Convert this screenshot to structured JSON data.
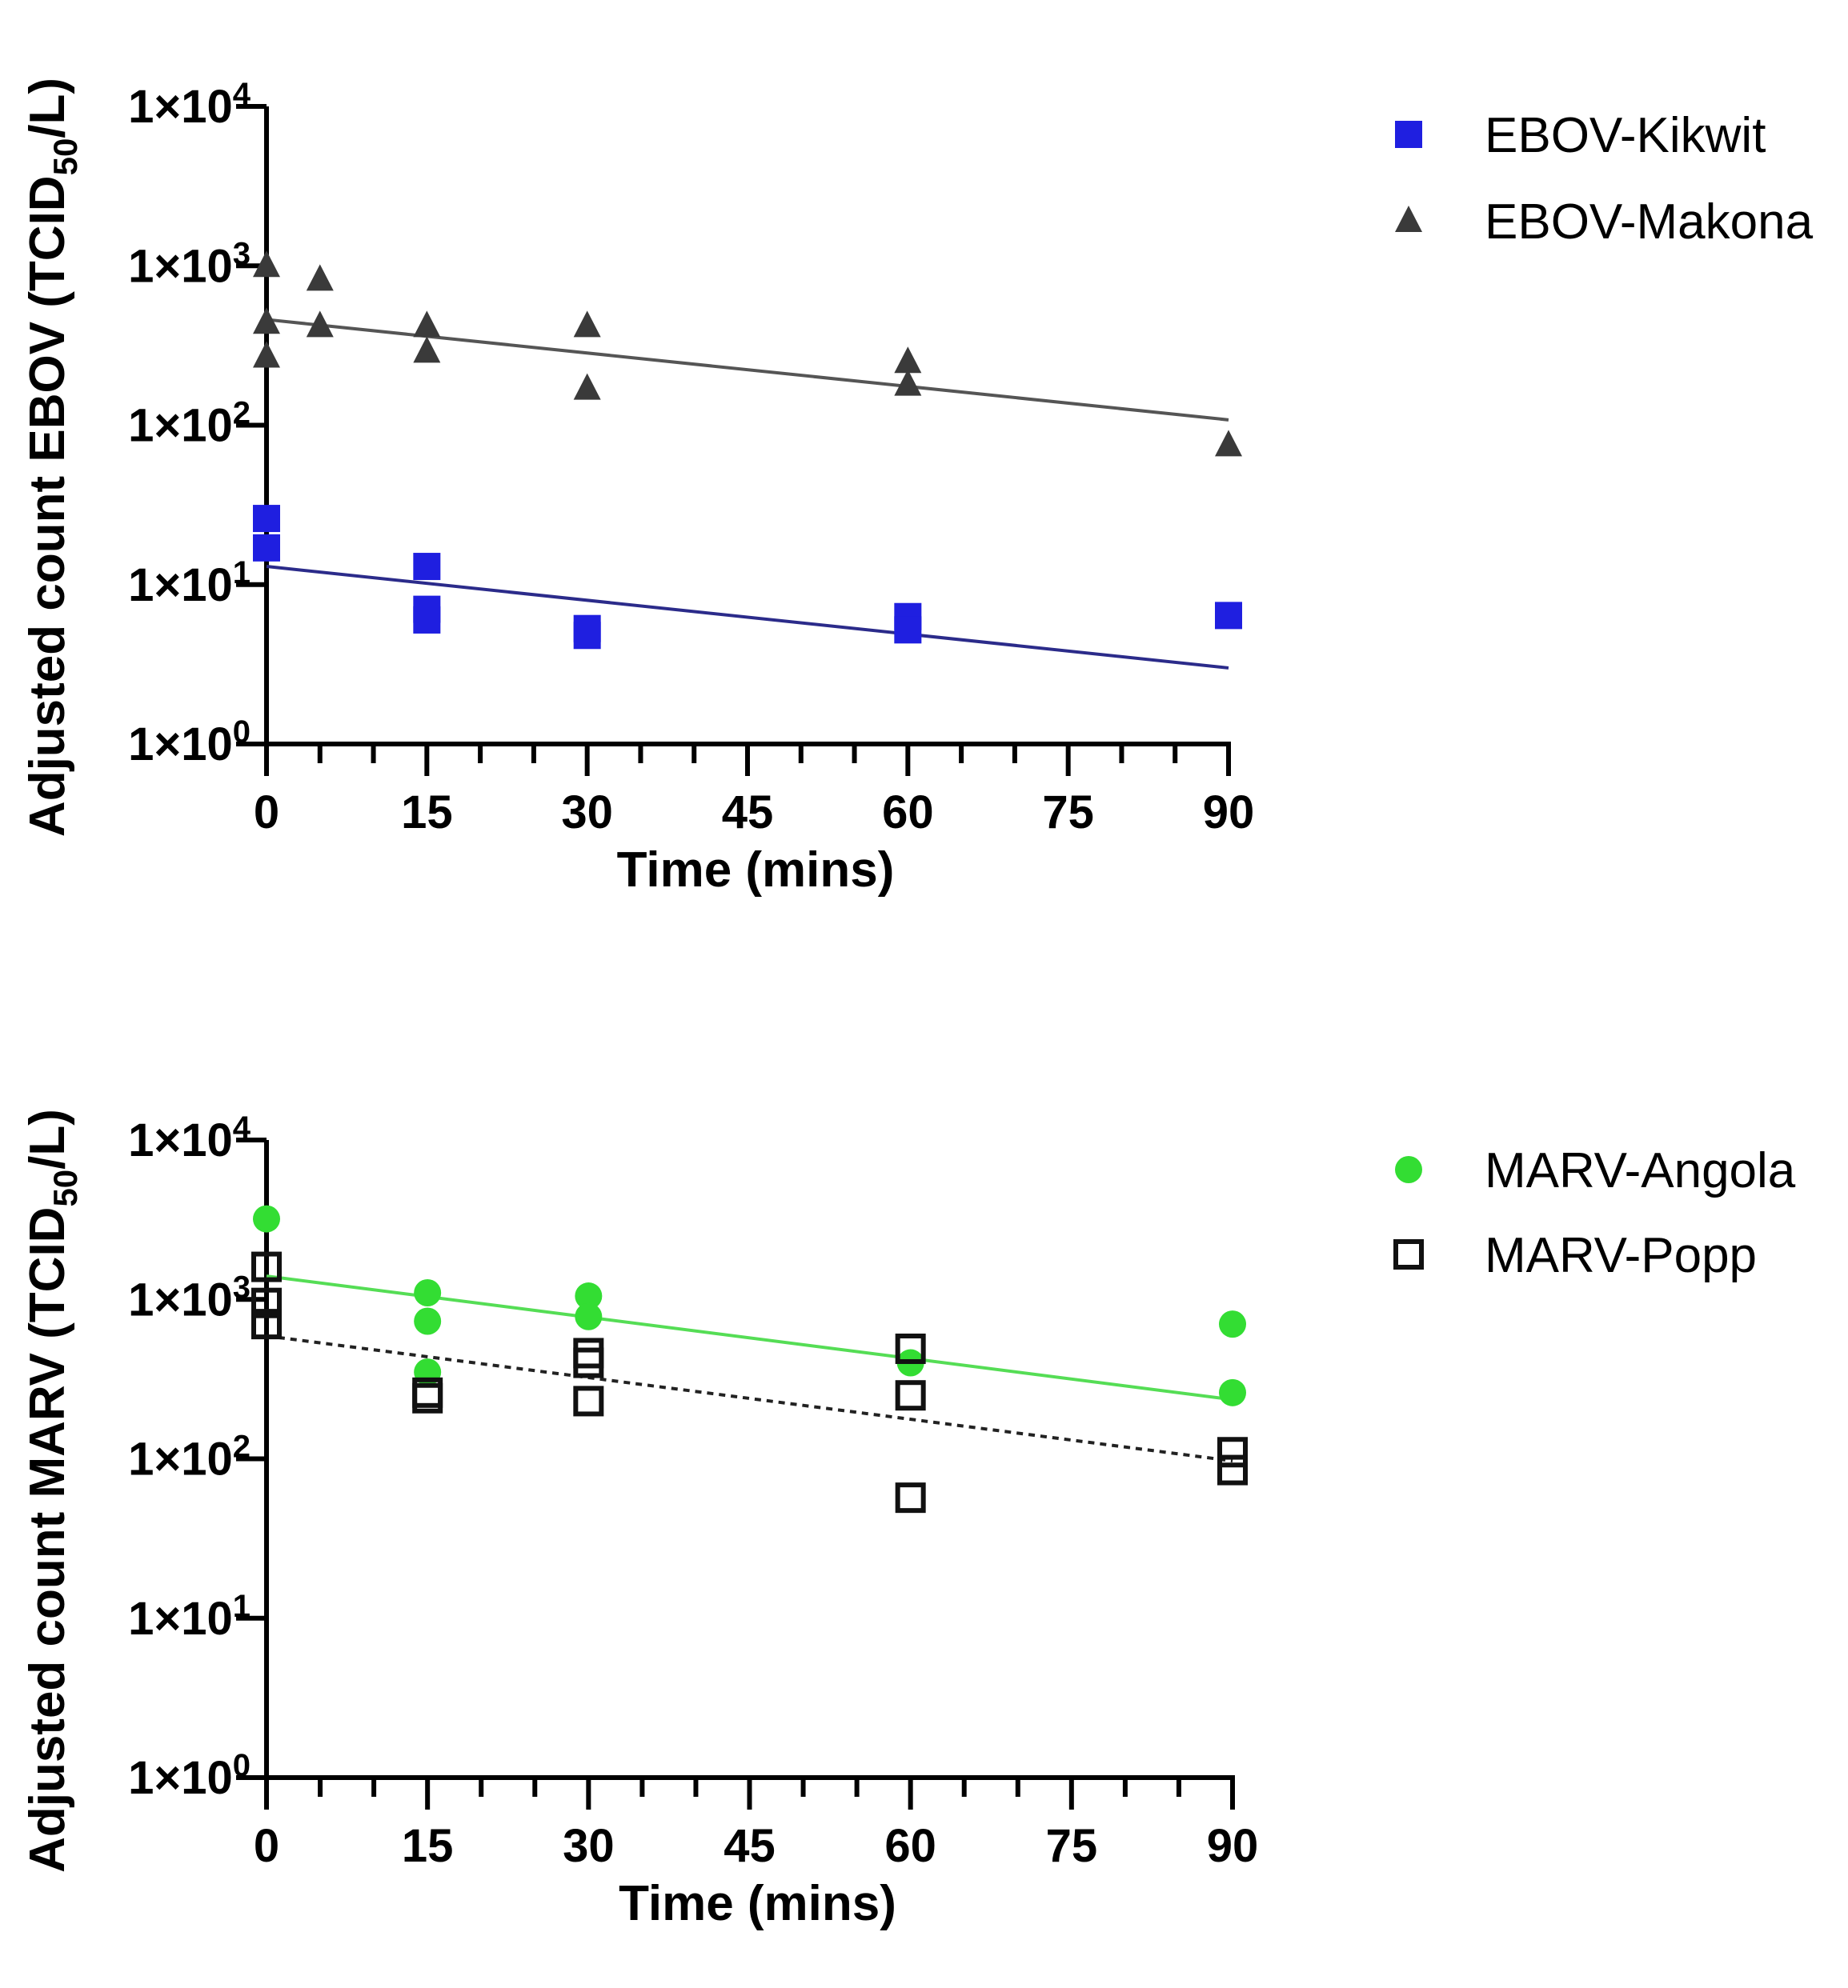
{
  "chart_data": [
    {
      "type": "scatter",
      "id": "ebov",
      "xlabel": "Time (mins)",
      "ylabel": {
        "prefix": "Adjusted count EBOV (TCID",
        "sub": "50",
        "suffix": "/L)"
      },
      "xlim": [
        0,
        90
      ],
      "xticks": [
        0,
        15,
        30,
        45,
        60,
        75,
        90
      ],
      "ylim_log10": [
        0,
        4
      ],
      "yticks": [
        {
          "exp": 0,
          "base": "1×10",
          "sup": "0"
        },
        {
          "exp": 1,
          "base": "1×10",
          "sup": "1"
        },
        {
          "exp": 2,
          "base": "1×10",
          "sup": "2"
        },
        {
          "exp": 3,
          "base": "1×10",
          "sup": "3"
        },
        {
          "exp": 4,
          "base": "1×10",
          "sup": "4"
        }
      ],
      "grid": false,
      "legend_position": "right",
      "series": [
        {
          "name": "EBOV-Kikwit",
          "marker": "square-filled",
          "color": "#1f1fe0",
          "points": [
            [
              0,
              26
            ],
            [
              0,
              17
            ],
            [
              15,
              13
            ],
            [
              15,
              7
            ],
            [
              15,
              6
            ],
            [
              30,
              5.3
            ],
            [
              30,
              4.8
            ],
            [
              60,
              6.3
            ],
            [
              60,
              5.2
            ],
            [
              90,
              6.4
            ]
          ],
          "fit": {
            "x": [
              0,
              90
            ],
            "y": [
              13,
              3.0
            ],
            "style": "solid",
            "color": "#2b2b8a"
          }
        },
        {
          "name": "EBOV-Makona",
          "marker": "triangle-filled",
          "color": "#3a3a3a",
          "points": [
            [
              0,
              1000
            ],
            [
              0,
              440
            ],
            [
              0,
              270
            ],
            [
              5,
              820
            ],
            [
              5,
              420
            ],
            [
              15,
              420
            ],
            [
              15,
              290
            ],
            [
              30,
              420
            ],
            [
              30,
              170
            ],
            [
              60,
              250
            ],
            [
              60,
              180
            ],
            [
              90,
              75
            ]
          ],
          "fit": {
            "x": [
              0,
              90
            ],
            "y": [
              460,
              108
            ],
            "style": "solid",
            "color": "#555555"
          }
        }
      ]
    },
    {
      "type": "scatter",
      "id": "marv",
      "xlabel": "Time (mins)",
      "ylabel": {
        "prefix": "Adjusted count MARV (TCID",
        "sub": "50",
        "suffix": "/L)"
      },
      "xlim": [
        0,
        90
      ],
      "xticks": [
        0,
        15,
        30,
        45,
        60,
        75,
        90
      ],
      "ylim_log10": [
        0,
        4
      ],
      "yticks": [
        {
          "exp": 0,
          "base": "1×10",
          "sup": "0"
        },
        {
          "exp": 1,
          "base": "1×10",
          "sup": "1"
        },
        {
          "exp": 2,
          "base": "1×10",
          "sup": "2"
        },
        {
          "exp": 3,
          "base": "1×10",
          "sup": "3"
        },
        {
          "exp": 4,
          "base": "1×10",
          "sup": "4"
        }
      ],
      "grid": false,
      "legend_position": "right",
      "series": [
        {
          "name": "MARV-Angola",
          "marker": "circle-filled",
          "color": "#33dd33",
          "points": [
            [
              0,
              3200
            ],
            [
              15,
              1100
            ],
            [
              15,
              730
            ],
            [
              15,
              350
            ],
            [
              30,
              1050
            ],
            [
              30,
              780
            ],
            [
              60,
              400
            ],
            [
              90,
              700
            ],
            [
              90,
              260
            ]
          ],
          "fit": {
            "x": [
              0,
              90
            ],
            "y": [
              1400,
              235
            ],
            "style": "solid",
            "color": "#55dd55"
          }
        },
        {
          "name": "MARV-Popp",
          "marker": "square-open",
          "color": "#111111",
          "points": [
            [
              0,
              1600
            ],
            [
              0,
              950
            ],
            [
              0,
              700
            ],
            [
              15,
              260
            ],
            [
              15,
              240
            ],
            [
              30,
              460
            ],
            [
              30,
              400
            ],
            [
              30,
              230
            ],
            [
              60,
              490
            ],
            [
              60,
              250
            ],
            [
              60,
              57
            ],
            [
              90,
              110
            ],
            [
              90,
              85
            ]
          ],
          "fit": {
            "x": [
              0,
              90
            ],
            "y": [
              590,
              97
            ],
            "style": "dashed",
            "color": "#222222"
          }
        }
      ]
    }
  ]
}
